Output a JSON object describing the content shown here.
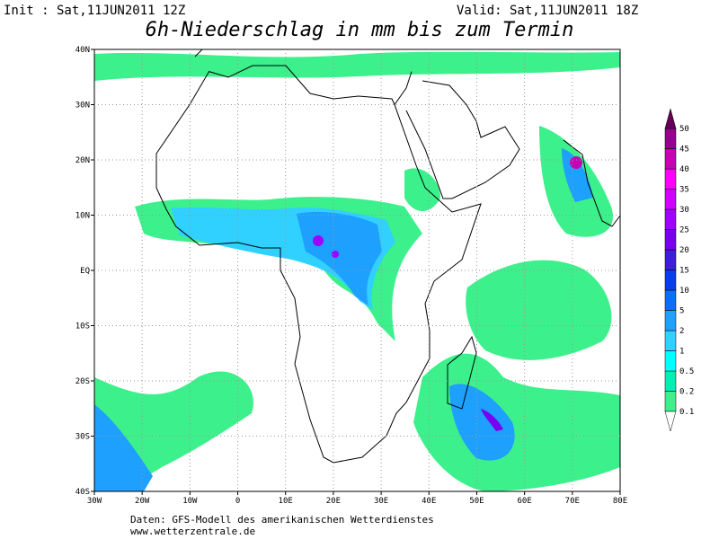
{
  "header": {
    "init": "Init : Sat,11JUN2011 12Z",
    "valid": "Valid: Sat,11JUN2011 18Z",
    "title": "6h-Niederschlag in mm bis zum Termin"
  },
  "map": {
    "lon_labels": [
      "30W",
      "20W",
      "10W",
      "0",
      "10E",
      "20E",
      "30E",
      "40E",
      "50E",
      "60E",
      "70E",
      "80E"
    ],
    "lat_labels": [
      "40N",
      "30N",
      "20N",
      "10N",
      "EQ",
      "10S",
      "20S",
      "30S",
      "40S"
    ]
  },
  "legend": {
    "labels": [
      "0.1",
      "0.2",
      "0.5",
      "1",
      "2",
      "5",
      "10",
      "15",
      "20",
      "25",
      "30",
      "35",
      "40",
      "45",
      "50"
    ],
    "colors": [
      "#3cf08c",
      "#00f0b4",
      "#00ffff",
      "#30d0ff",
      "#1ea0ff",
      "#0a6eff",
      "#0a3cf0",
      "#3c1edc",
      "#7800f0",
      "#a000ff",
      "#d200ff",
      "#ff00ff",
      "#c800b4",
      "#96008c",
      "#64005a"
    ]
  },
  "footer": {
    "source": "Daten: GFS-Modell des amerikanischen Wetterdienstes",
    "url": "www.wetterzentrale.de"
  }
}
